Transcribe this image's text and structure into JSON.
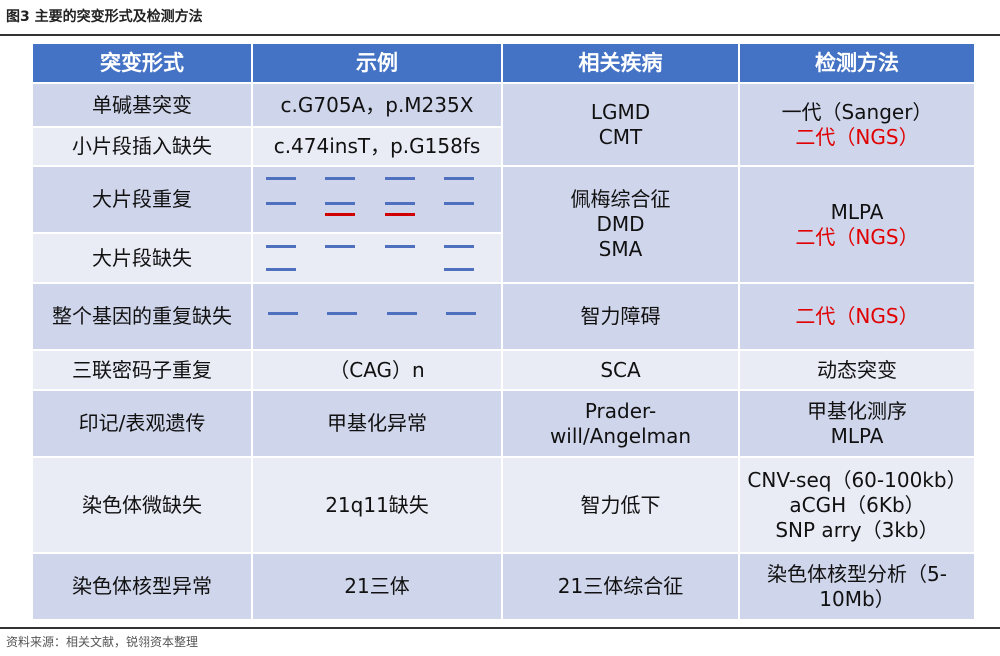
{
  "title": "图3 主要的突变形式及检测方法",
  "headers": [
    "突变形式",
    "示例",
    "相关疾病",
    "检测方法"
  ],
  "rows": {
    "r1": {
      "form": "单碱基突变",
      "example": "c.G705A，p.M235X"
    },
    "r2": {
      "form": "小片段插入缺失",
      "example": "c.474insT，p.G158fs"
    },
    "m12": {
      "disease": [
        "LGMD",
        "CMT"
      ],
      "method": [
        "一代（Sanger）",
        "二代（NGS）"
      ]
    },
    "r3": {
      "form": "大片段重复"
    },
    "r4": {
      "form": "大片段缺失"
    },
    "m34": {
      "disease": [
        "佩梅综合征",
        "DMD",
        "SMA"
      ],
      "method": [
        "MLPA",
        "二代（NGS）"
      ]
    },
    "r5": {
      "form": "整个基因的重复缺失",
      "disease": "智力障碍",
      "method": "二代（NGS）"
    },
    "r6": {
      "form": "三联密码子重复",
      "example": "（CAG）n",
      "disease": "SCA",
      "method": "动态突变"
    },
    "r7": {
      "form": "印记/表观遗传",
      "example": "甲基化异常",
      "disease": [
        "Prader-",
        "will/Angelman"
      ],
      "method": [
        "甲基化测序",
        "MLPA"
      ]
    },
    "r8": {
      "form": "染色体微缺失",
      "example": "21q11缺失",
      "disease": "智力低下",
      "method": [
        "CNV-seq（60-100kb）",
        "aCGH（6Kb）",
        "SNP arry（3kb）"
      ]
    },
    "r9": {
      "form": "染色体核型异常",
      "example": "21三体",
      "disease": "21三体综合征",
      "method": [
        "染色体核型分析（5-",
        "10Mb）"
      ]
    }
  },
  "colors": {
    "header": "#4472c4",
    "row_dark": "#cfd5ea",
    "row_light": "#e9ebf5",
    "highlight": "#e00000",
    "dash": "#4f6fbf"
  },
  "source": "资料来源：相关文献，锐翎资本整理"
}
